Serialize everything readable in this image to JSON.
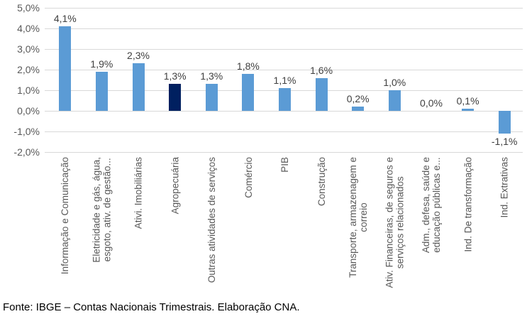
{
  "chart_data": {
    "type": "bar",
    "title": "",
    "xlabel": "",
    "ylabel": "",
    "categories": [
      "Informação e Comunicação",
      "Eletricidade e gás, água,\nesgoto, ativ. de gestão...",
      "Ativi. Imobiliárias",
      "Agropecuária",
      "Outras atividades de serviços",
      "Comércio",
      "PIB",
      "Construção",
      "Transporte, armazenagem e\ncorreio",
      "Ativ. Financeiras, de seguros e\nserviços relacionados",
      "Adm., defesa, saúde e\neducação públicas e...",
      "Ind. De transformação",
      "Ind. Extrativas"
    ],
    "values": [
      4.1,
      1.9,
      2.3,
      1.3,
      1.3,
      1.8,
      1.1,
      1.6,
      0.2,
      1.0,
      0.0,
      0.1,
      -1.1
    ],
    "value_labels": [
      "4,1%",
      "1,9%",
      "2,3%",
      "1,3%",
      "1,3%",
      "1,8%",
      "1,1%",
      "1,6%",
      "0,2%",
      "1,0%",
      "0,0%",
      "0,1%",
      "-1,1%"
    ],
    "highlight_index": 3,
    "yticks": [
      {
        "value": 5,
        "label": "5,0%"
      },
      {
        "value": 4,
        "label": "4,0%"
      },
      {
        "value": 3,
        "label": "3,0%"
      },
      {
        "value": 2,
        "label": "2,0%"
      },
      {
        "value": 1,
        "label": "1,0%"
      },
      {
        "value": 0,
        "label": "0,0%"
      },
      {
        "value": -1,
        "label": "-1,0%"
      },
      {
        "value": -2,
        "label": "-2,0%"
      }
    ],
    "ylim": [
      -2.0,
      5.0
    ],
    "grid": true,
    "legend": "none",
    "colors": {
      "bar": "#5b9bd5",
      "highlight": "#002060",
      "gridline": "#d9d9d9",
      "axis_text": "#595959",
      "value_text": "#404040"
    }
  },
  "footer": {
    "source_text": "Fonte: IBGE – Contas Nacionais Trimestrais. Elaboração CNA."
  }
}
